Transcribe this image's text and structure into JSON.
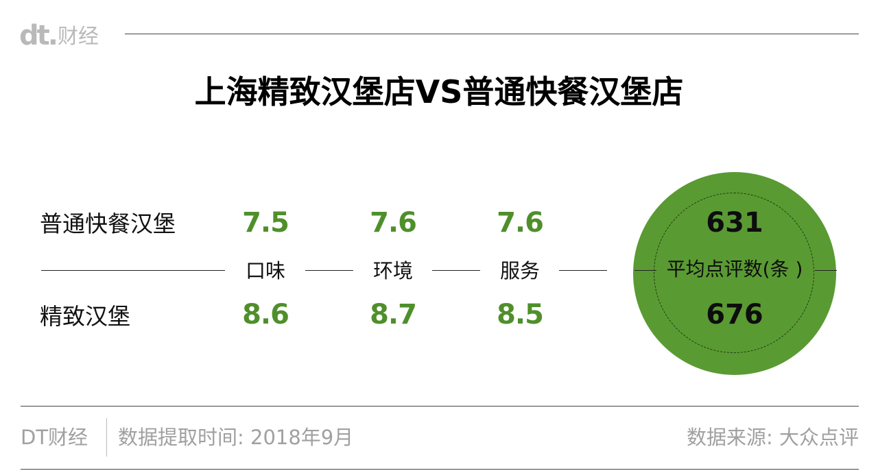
{
  "header": {
    "logo": "dt.",
    "brand": "财经",
    "title": "上海精致汉堡店VS普通快餐汉堡店"
  },
  "table": {
    "rows": [
      {
        "label": "普通快餐汉堡",
        "scores": [
          "7.5",
          "7.6",
          "7.6"
        ],
        "avg_reviews": "631"
      },
      {
        "label": "精致汉堡",
        "scores": [
          "8.6",
          "8.7",
          "8.5"
        ],
        "avg_reviews": "676"
      }
    ],
    "categories": [
      "口味",
      "环境",
      "服务"
    ],
    "avg_reviews_label": "平均点评数(条 )"
  },
  "footer": {
    "brand": "DT财经",
    "time": "数据提取时间: 2018年9月",
    "source": "数据来源: 大众点评"
  },
  "colors": {
    "accent_green": "#5a9a33",
    "score_green": "#4f8f2b",
    "muted_gray": "#a0a0a0"
  }
}
